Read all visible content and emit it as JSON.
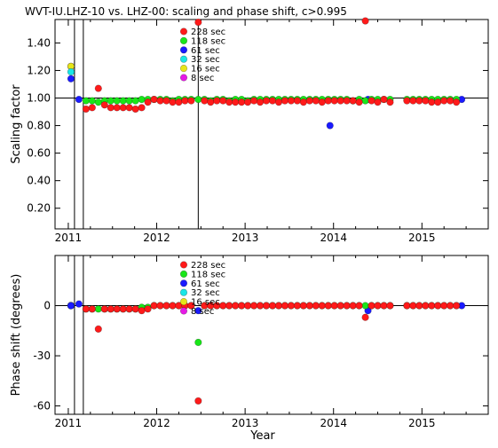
{
  "page_title": "WVT-IU.LHZ-10 vs. LHZ-00: scaling and phase shift, c>0.995",
  "colors": {
    "228 sec": "#ff1a1a",
    "118 sec": "#19e619",
    "61 sec": "#1a1aff",
    "32 sec": "#19e6e6",
    "16 sec": "#e6e619",
    "8 sec": "#e619e6"
  },
  "chart_data": [
    {
      "type": "scatter",
      "title": "WVT-IU.LHZ-10 vs. LHZ-00: scaling and phase shift, c>0.995",
      "xlabel": "",
      "ylabel": "Scaling factor",
      "xlim": [
        2010.85,
        2015.75
      ],
      "ylim": [
        0.05,
        1.57
      ],
      "x_tick_labels": [
        "2011",
        "2012",
        "2013",
        "2014",
        "2015"
      ],
      "y_tick_labels": [
        "0.20",
        "0.40",
        "0.60",
        "0.80",
        "1.00",
        "1.20",
        "1.40"
      ],
      "y_ticks": [
        0.2,
        0.4,
        0.6,
        0.8,
        1.0,
        1.2,
        1.4
      ],
      "reference_line": 1.0,
      "event_lines_x": [
        2011.07,
        2011.17,
        2012.47
      ],
      "legend": [
        "228 sec",
        "118 sec",
        "61 sec",
        "32 sec",
        "16 sec",
        "8 sec"
      ],
      "series": [
        {
          "name": "8 sec",
          "x": [
            2011.03
          ],
          "y": [
            1.23
          ]
        },
        {
          "name": "16 sec",
          "x": [
            2011.03
          ],
          "y": [
            1.23
          ]
        },
        {
          "name": "32 sec",
          "x": [
            2011.03
          ],
          "y": [
            1.19
          ]
        },
        {
          "name": "61 sec",
          "x": [
            2011.03,
            2011.12,
            2013.96,
            2014.39,
            2015.45
          ],
          "y": [
            1.14,
            0.99,
            0.8,
            0.99,
            0.99
          ]
        },
        {
          "name": "118 sec",
          "x": [
            2011.2,
            2011.27,
            2011.34,
            2011.41,
            2011.48,
            2011.55,
            2011.62,
            2011.69,
            2011.76,
            2011.83,
            2011.9,
            2011.97,
            2012.04,
            2012.11,
            2012.18,
            2012.25,
            2012.32,
            2012.39,
            2012.47,
            2012.54,
            2012.61,
            2012.68,
            2012.75,
            2012.82,
            2012.89,
            2012.96,
            2013.03,
            2013.1,
            2013.17,
            2013.24,
            2013.31,
            2013.38,
            2013.45,
            2013.52,
            2013.59,
            2013.66,
            2013.73,
            2013.8,
            2013.87,
            2013.94,
            2014.01,
            2014.08,
            2014.15,
            2014.22,
            2014.29,
            2014.36,
            2014.43,
            2014.5,
            2014.57,
            2014.64,
            2014.83,
            2014.9,
            2014.97,
            2015.04,
            2015.11,
            2015.18,
            2015.25,
            2015.32,
            2015.39
          ],
          "y": [
            0.98,
            0.98,
            0.97,
            0.98,
            0.98,
            0.98,
            0.98,
            0.98,
            0.98,
            0.99,
            0.99,
            0.99,
            0.99,
            0.99,
            0.98,
            0.99,
            0.99,
            0.99,
            0.99,
            0.99,
            0.98,
            0.99,
            0.99,
            0.98,
            0.99,
            0.99,
            0.98,
            0.99,
            0.99,
            0.99,
            0.99,
            0.99,
            0.99,
            0.99,
            0.99,
            0.99,
            0.99,
            0.99,
            0.99,
            0.99,
            0.99,
            0.99,
            0.99,
            0.98,
            0.99,
            0.98,
            0.99,
            0.99,
            0.99,
            0.99,
            0.99,
            0.99,
            0.99,
            0.99,
            0.99,
            0.99,
            0.99,
            0.99,
            0.99
          ]
        },
        {
          "name": "228 sec",
          "x": [
            2011.2,
            2011.27,
            2011.34,
            2011.41,
            2011.48,
            2011.55,
            2011.62,
            2011.69,
            2011.76,
            2011.83,
            2011.9,
            2011.97,
            2012.04,
            2012.11,
            2012.18,
            2012.25,
            2012.32,
            2012.39,
            2012.47,
            2012.54,
            2012.61,
            2012.68,
            2012.75,
            2012.82,
            2012.89,
            2012.96,
            2013.03,
            2013.1,
            2013.17,
            2013.24,
            2013.31,
            2013.38,
            2013.45,
            2013.52,
            2013.59,
            2013.66,
            2013.73,
            2013.8,
            2013.87,
            2013.94,
            2014.01,
            2014.08,
            2014.15,
            2014.22,
            2014.29,
            2014.36,
            2014.43,
            2014.5,
            2014.57,
            2014.64,
            2014.83,
            2014.9,
            2014.97,
            2015.04,
            2015.11,
            2015.18,
            2015.25,
            2015.32,
            2015.39
          ],
          "y": [
            0.92,
            0.93,
            1.07,
            0.95,
            0.93,
            0.93,
            0.93,
            0.93,
            0.92,
            0.93,
            0.97,
            0.99,
            0.98,
            0.98,
            0.97,
            0.97,
            0.98,
            0.98,
            1.55,
            0.98,
            0.97,
            0.98,
            0.98,
            0.97,
            0.97,
            0.97,
            0.97,
            0.98,
            0.97,
            0.98,
            0.98,
            0.97,
            0.98,
            0.98,
            0.98,
            0.97,
            0.98,
            0.98,
            0.97,
            0.98,
            0.98,
            0.98,
            0.98,
            0.98,
            0.97,
            1.56,
            0.98,
            0.97,
            0.99,
            0.97,
            0.98,
            0.98,
            0.98,
            0.98,
            0.97,
            0.97,
            0.98,
            0.98,
            0.97
          ]
        }
      ]
    },
    {
      "type": "scatter",
      "title": "",
      "xlabel": "Year",
      "ylabel": "Phase shift (degrees)",
      "xlim": [
        2010.85,
        2015.75
      ],
      "ylim": [
        -65,
        30
      ],
      "x_tick_labels": [
        "2011",
        "2012",
        "2013",
        "2014",
        "2015"
      ],
      "y_tick_labels": [
        "-60",
        "-30",
        "0"
      ],
      "y_ticks": [
        -60,
        -30,
        0
      ],
      "reference_line": 0,
      "event_lines_x": [
        2011.07,
        2011.17
      ],
      "legend": [
        "228 sec",
        "118 sec",
        "61 sec",
        "32 sec",
        "16 sec",
        "8 sec"
      ],
      "series": [
        {
          "name": "8 sec",
          "x": [
            2011.03
          ],
          "y": [
            0
          ]
        },
        {
          "name": "16 sec",
          "x": [
            2011.03
          ],
          "y": [
            0
          ]
        },
        {
          "name": "32 sec",
          "x": [
            2011.03
          ],
          "y": [
            0
          ]
        },
        {
          "name": "61 sec",
          "x": [
            2011.03,
            2011.12,
            2012.47,
            2014.39,
            2015.45
          ],
          "y": [
            0,
            1,
            -3,
            -3,
            0
          ]
        },
        {
          "name": "118 sec",
          "x": [
            2011.2,
            2011.27,
            2011.34,
            2011.41,
            2011.48,
            2011.55,
            2011.62,
            2011.69,
            2011.76,
            2011.83,
            2011.9,
            2011.97,
            2012.04,
            2012.11,
            2012.18,
            2012.25,
            2012.32,
            2012.39,
            2012.47,
            2012.54,
            2012.61,
            2012.68,
            2012.75,
            2012.82,
            2012.89,
            2012.96,
            2013.03,
            2013.1,
            2013.17,
            2013.24,
            2013.31,
            2013.38,
            2013.45,
            2013.52,
            2013.59,
            2013.66,
            2013.73,
            2013.8,
            2013.87,
            2013.94,
            2014.01,
            2014.08,
            2014.15,
            2014.22,
            2014.29,
            2014.36,
            2014.43,
            2014.5,
            2014.57,
            2014.64,
            2014.83,
            2014.9,
            2014.97,
            2015.04,
            2015.11,
            2015.18,
            2015.25,
            2015.32,
            2015.39
          ],
          "y": [
            -2,
            -2,
            -2,
            -2,
            -2,
            -2,
            -2,
            -2,
            -2,
            -1,
            -1,
            0,
            0,
            0,
            0,
            0,
            0,
            0,
            -22,
            0,
            0,
            0,
            0,
            0,
            0,
            0,
            0,
            0,
            0,
            0,
            0,
            0,
            0,
            0,
            0,
            0,
            0,
            0,
            0,
            0,
            0,
            0,
            0,
            0,
            0,
            0,
            0,
            0,
            0,
            0,
            0,
            0,
            0,
            0,
            0,
            0,
            0,
            0,
            0
          ]
        },
        {
          "name": "228 sec",
          "x": [
            2011.2,
            2011.27,
            2011.34,
            2011.41,
            2011.48,
            2011.55,
            2011.62,
            2011.69,
            2011.76,
            2011.83,
            2011.9,
            2011.97,
            2012.04,
            2012.11,
            2012.18,
            2012.25,
            2012.32,
            2012.39,
            2012.47,
            2012.54,
            2012.61,
            2012.68,
            2012.75,
            2012.82,
            2012.89,
            2012.96,
            2013.03,
            2013.1,
            2013.17,
            2013.24,
            2013.31,
            2013.38,
            2013.45,
            2013.52,
            2013.59,
            2013.66,
            2013.73,
            2013.8,
            2013.87,
            2013.94,
            2014.01,
            2014.08,
            2014.15,
            2014.22,
            2014.29,
            2014.36,
            2014.43,
            2014.5,
            2014.57,
            2014.64,
            2014.83,
            2014.9,
            2014.97,
            2015.04,
            2015.11,
            2015.18,
            2015.25,
            2015.32,
            2015.39
          ],
          "y": [
            -2,
            -2,
            -14,
            -2,
            -2,
            -2,
            -2,
            -2,
            -2,
            -3,
            -2,
            0,
            0,
            0,
            0,
            0,
            0,
            0,
            -57,
            0,
            0,
            0,
            0,
            0,
            0,
            0,
            0,
            0,
            0,
            0,
            0,
            0,
            0,
            0,
            0,
            0,
            0,
            0,
            0,
            0,
            0,
            0,
            0,
            0,
            0,
            -7,
            0,
            0,
            0,
            0,
            0,
            0,
            0,
            0,
            0,
            0,
            0,
            0,
            0
          ]
        }
      ]
    }
  ]
}
